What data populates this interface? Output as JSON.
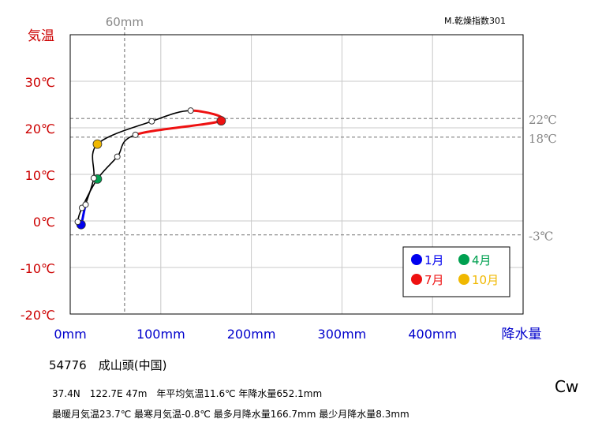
{
  "chart_data": {
    "type": "line",
    "xlabel": "降水量",
    "ylabel": "気温",
    "xlim": [
      0,
      500
    ],
    "ylim": [
      -20,
      40
    ],
    "x_ticks": [
      {
        "value": 0,
        "label": "0mm"
      },
      {
        "value": 100,
        "label": "100mm"
      },
      {
        "value": 200,
        "label": "200mm"
      },
      {
        "value": 300,
        "label": "300mm"
      },
      {
        "value": 400,
        "label": "400mm"
      }
    ],
    "y_ticks": [
      {
        "value": 30,
        "label": "30℃"
      },
      {
        "value": 20,
        "label": "20℃"
      },
      {
        "value": 10,
        "label": "10℃"
      },
      {
        "value": 0,
        "label": "0℃"
      },
      {
        "value": -10,
        "label": "-10℃"
      },
      {
        "value": -20,
        "label": "-20℃"
      }
    ],
    "reference_lines": [
      {
        "axis": "x",
        "value": 60,
        "label": "60mm"
      },
      {
        "axis": "y",
        "value": 22,
        "label": "22℃"
      },
      {
        "axis": "y",
        "value": 18,
        "label": "18℃"
      },
      {
        "axis": "y",
        "value": -3,
        "label": "-3℃"
      }
    ],
    "months": [
      {
        "month": 1,
        "precip": 12.0,
        "temp": -0.8
      },
      {
        "month": 2,
        "precip": 8.3,
        "temp": -0.2
      },
      {
        "month": 3,
        "precip": 13.0,
        "temp": 2.8
      },
      {
        "month": 4,
        "precip": 30.0,
        "temp": 9.0
      },
      {
        "month": 5,
        "precip": 52.0,
        "temp": 13.8
      },
      {
        "month": 6,
        "precip": 72.0,
        "temp": 18.5
      },
      {
        "month": 7,
        "precip": 166.7,
        "temp": 21.5
      },
      {
        "month": 8,
        "precip": 133.0,
        "temp": 23.7
      },
      {
        "month": 9,
        "precip": 90.0,
        "temp": 21.4
      },
      {
        "month": 10,
        "precip": 30.0,
        "temp": 16.5
      },
      {
        "month": 11,
        "precip": 26.0,
        "temp": 9.2
      },
      {
        "month": 12,
        "precip": 17.0,
        "temp": 3.5
      }
    ],
    "highlight_months": [
      {
        "month": 1,
        "label": "1月",
        "color": "#0000ee"
      },
      {
        "month": 4,
        "label": "4月",
        "color": "#00a050"
      },
      {
        "month": 7,
        "label": "7月",
        "color": "#ee1111"
      },
      {
        "month": 10,
        "label": "10月",
        "color": "#f0b800"
      }
    ],
    "grid": true,
    "legend": "bottom-right"
  },
  "dryness_index": "M.乾燥指数301",
  "station": "54776　成山頭(中国)",
  "info_line1": "37.4N　122.7E 47m　年平均気温11.6℃ 年降水量652.1mm",
  "info_line2": "最暖月気温23.7℃ 最寒月気温-0.8℃ 最多月降水量166.7mm 最少月降水量8.3mm",
  "climate_type": "Cw",
  "colors": {
    "temp_axis": "#cc0000",
    "precip_axis": "#0000cc",
    "reference": "#808080",
    "grid": "#c8c8c8",
    "summer_segment": "#ee1111",
    "winter_segment": "#0000ee"
  }
}
